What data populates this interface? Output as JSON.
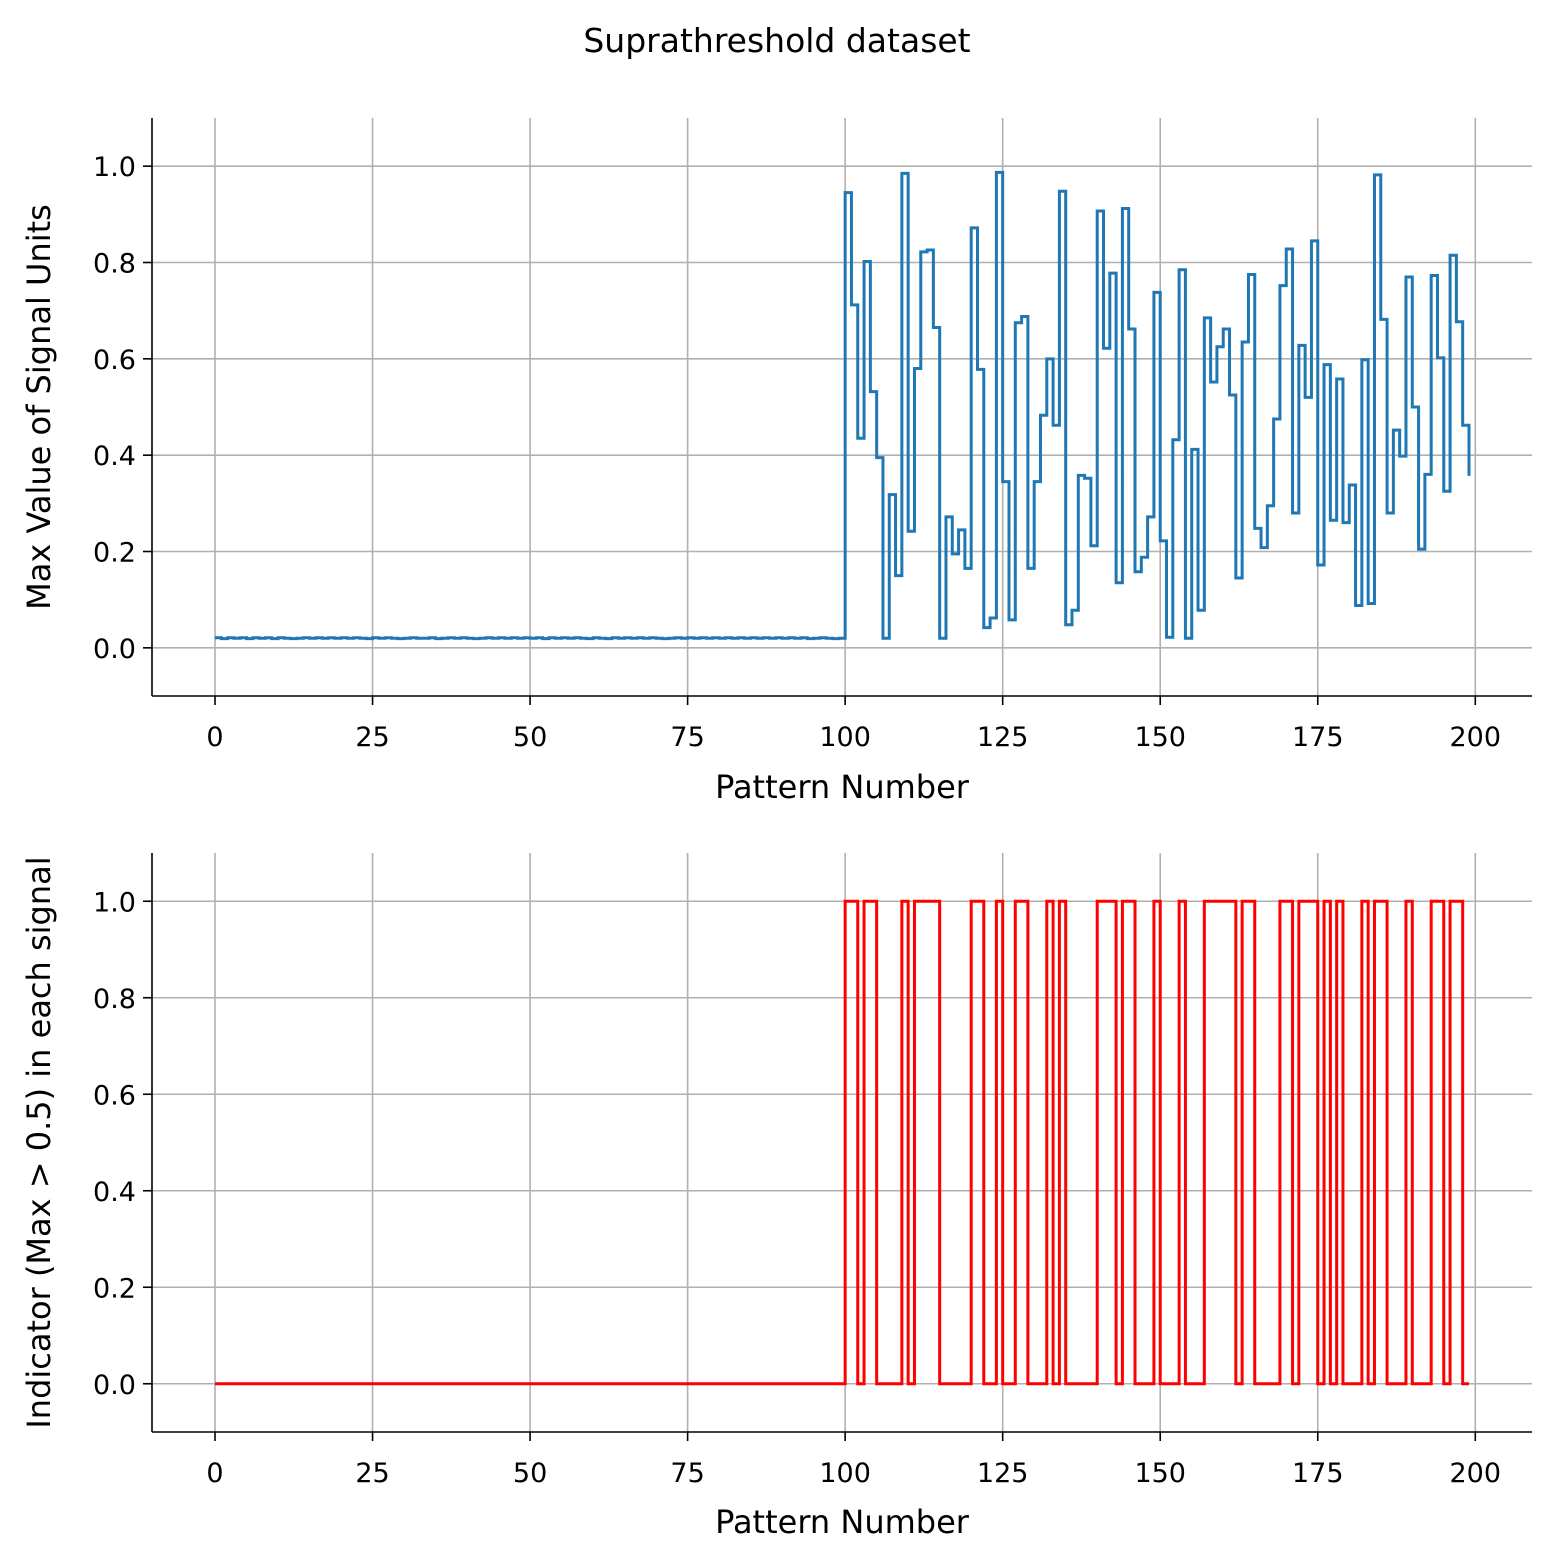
{
  "figure": {
    "title": "Suprathreshold dataset"
  },
  "chart_data": [
    {
      "type": "line",
      "drawstyle": "steps-post",
      "title": "",
      "xlabel": "Pattern Number",
      "ylabel": "Max Value of Signal Units",
      "xlim": [
        -10,
        209
      ],
      "ylim": [
        -0.1,
        1.1
      ],
      "xticks": [
        0,
        25,
        50,
        75,
        100,
        125,
        150,
        175,
        200
      ],
      "xtick_labels": [
        "0",
        "25",
        "50",
        "75",
        "100",
        "125",
        "150",
        "175",
        "200"
      ],
      "yticks": [
        0.0,
        0.2,
        0.4,
        0.6,
        0.8,
        1.0
      ],
      "ytick_labels": [
        "0.0",
        "0.2",
        "0.4",
        "0.6",
        "0.8",
        "1.0"
      ],
      "grid": true,
      "legend": "none",
      "color": "#1f77b4",
      "series": [
        {
          "values": [
            0.021,
            0.019,
            0.021,
            0.02,
            0.021,
            0.019,
            0.021,
            0.02,
            0.021,
            0.019,
            0.021,
            0.02,
            0.019,
            0.02,
            0.021,
            0.02,
            0.021,
            0.02,
            0.021,
            0.02,
            0.021,
            0.02,
            0.021,
            0.02,
            0.019,
            0.021,
            0.02,
            0.021,
            0.02,
            0.019,
            0.02,
            0.021,
            0.02,
            0.02,
            0.021,
            0.019,
            0.02,
            0.021,
            0.02,
            0.021,
            0.02,
            0.019,
            0.02,
            0.021,
            0.02,
            0.021,
            0.02,
            0.021,
            0.02,
            0.021,
            0.02,
            0.021,
            0.019,
            0.021,
            0.02,
            0.021,
            0.02,
            0.021,
            0.02,
            0.019,
            0.021,
            0.02,
            0.019,
            0.021,
            0.02,
            0.021,
            0.02,
            0.021,
            0.02,
            0.021,
            0.02,
            0.019,
            0.02,
            0.021,
            0.02,
            0.021,
            0.02,
            0.021,
            0.02,
            0.021,
            0.02,
            0.021,
            0.02,
            0.021,
            0.02,
            0.021,
            0.02,
            0.021,
            0.02,
            0.021,
            0.02,
            0.021,
            0.02,
            0.021,
            0.019,
            0.02,
            0.021,
            0.02,
            0.019,
            0.02,
            0.945,
            0.712,
            0.435,
            0.802,
            0.532,
            0.395,
            0.02,
            0.318,
            0.15,
            0.985,
            0.242,
            0.58,
            0.822,
            0.826,
            0.665,
            0.02,
            0.272,
            0.195,
            0.245,
            0.165,
            0.872,
            0.578,
            0.042,
            0.062,
            0.987,
            0.345,
            0.058,
            0.675,
            0.688,
            0.165,
            0.345,
            0.483,
            0.6,
            0.462,
            0.948,
            0.048,
            0.078,
            0.358,
            0.352,
            0.212,
            0.907,
            0.622,
            0.778,
            0.135,
            0.912,
            0.662,
            0.158,
            0.188,
            0.272,
            0.738,
            0.222,
            0.022,
            0.432,
            0.785,
            0.02,
            0.412,
            0.078,
            0.685,
            0.552,
            0.625,
            0.662,
            0.525,
            0.145,
            0.635,
            0.775,
            0.248,
            0.208,
            0.295,
            0.475,
            0.752,
            0.828,
            0.28,
            0.628,
            0.52,
            0.845,
            0.172,
            0.588,
            0.265,
            0.558,
            0.26,
            0.338,
            0.088,
            0.598,
            0.092,
            0.982,
            0.682,
            0.28,
            0.452,
            0.398,
            0.77,
            0.5,
            0.205,
            0.36,
            0.773,
            0.602,
            0.325,
            0.815,
            0.677,
            0.462,
            0.357
          ]
        }
      ]
    },
    {
      "type": "line",
      "drawstyle": "steps-post",
      "title": "",
      "xlabel": "Pattern Number",
      "ylabel": "Indicator (Max > 0.5) in each signal",
      "xlim": [
        -10,
        209
      ],
      "ylim": [
        -0.1,
        1.1
      ],
      "xticks": [
        0,
        25,
        50,
        75,
        100,
        125,
        150,
        175,
        200
      ],
      "xtick_labels": [
        "0",
        "25",
        "50",
        "75",
        "100",
        "125",
        "150",
        "175",
        "200"
      ],
      "yticks": [
        0.0,
        0.2,
        0.4,
        0.6,
        0.8,
        1.0
      ],
      "ytick_labels": [
        "0.0",
        "0.2",
        "0.4",
        "0.6",
        "0.8",
        "1.0"
      ],
      "grid": true,
      "legend": "none",
      "color": "#ff0000",
      "threshold": 0.5,
      "series": [
        {
          "values_rule": "1 where Max Value of Signal Units > 0.5, else 0"
        }
      ]
    }
  ]
}
